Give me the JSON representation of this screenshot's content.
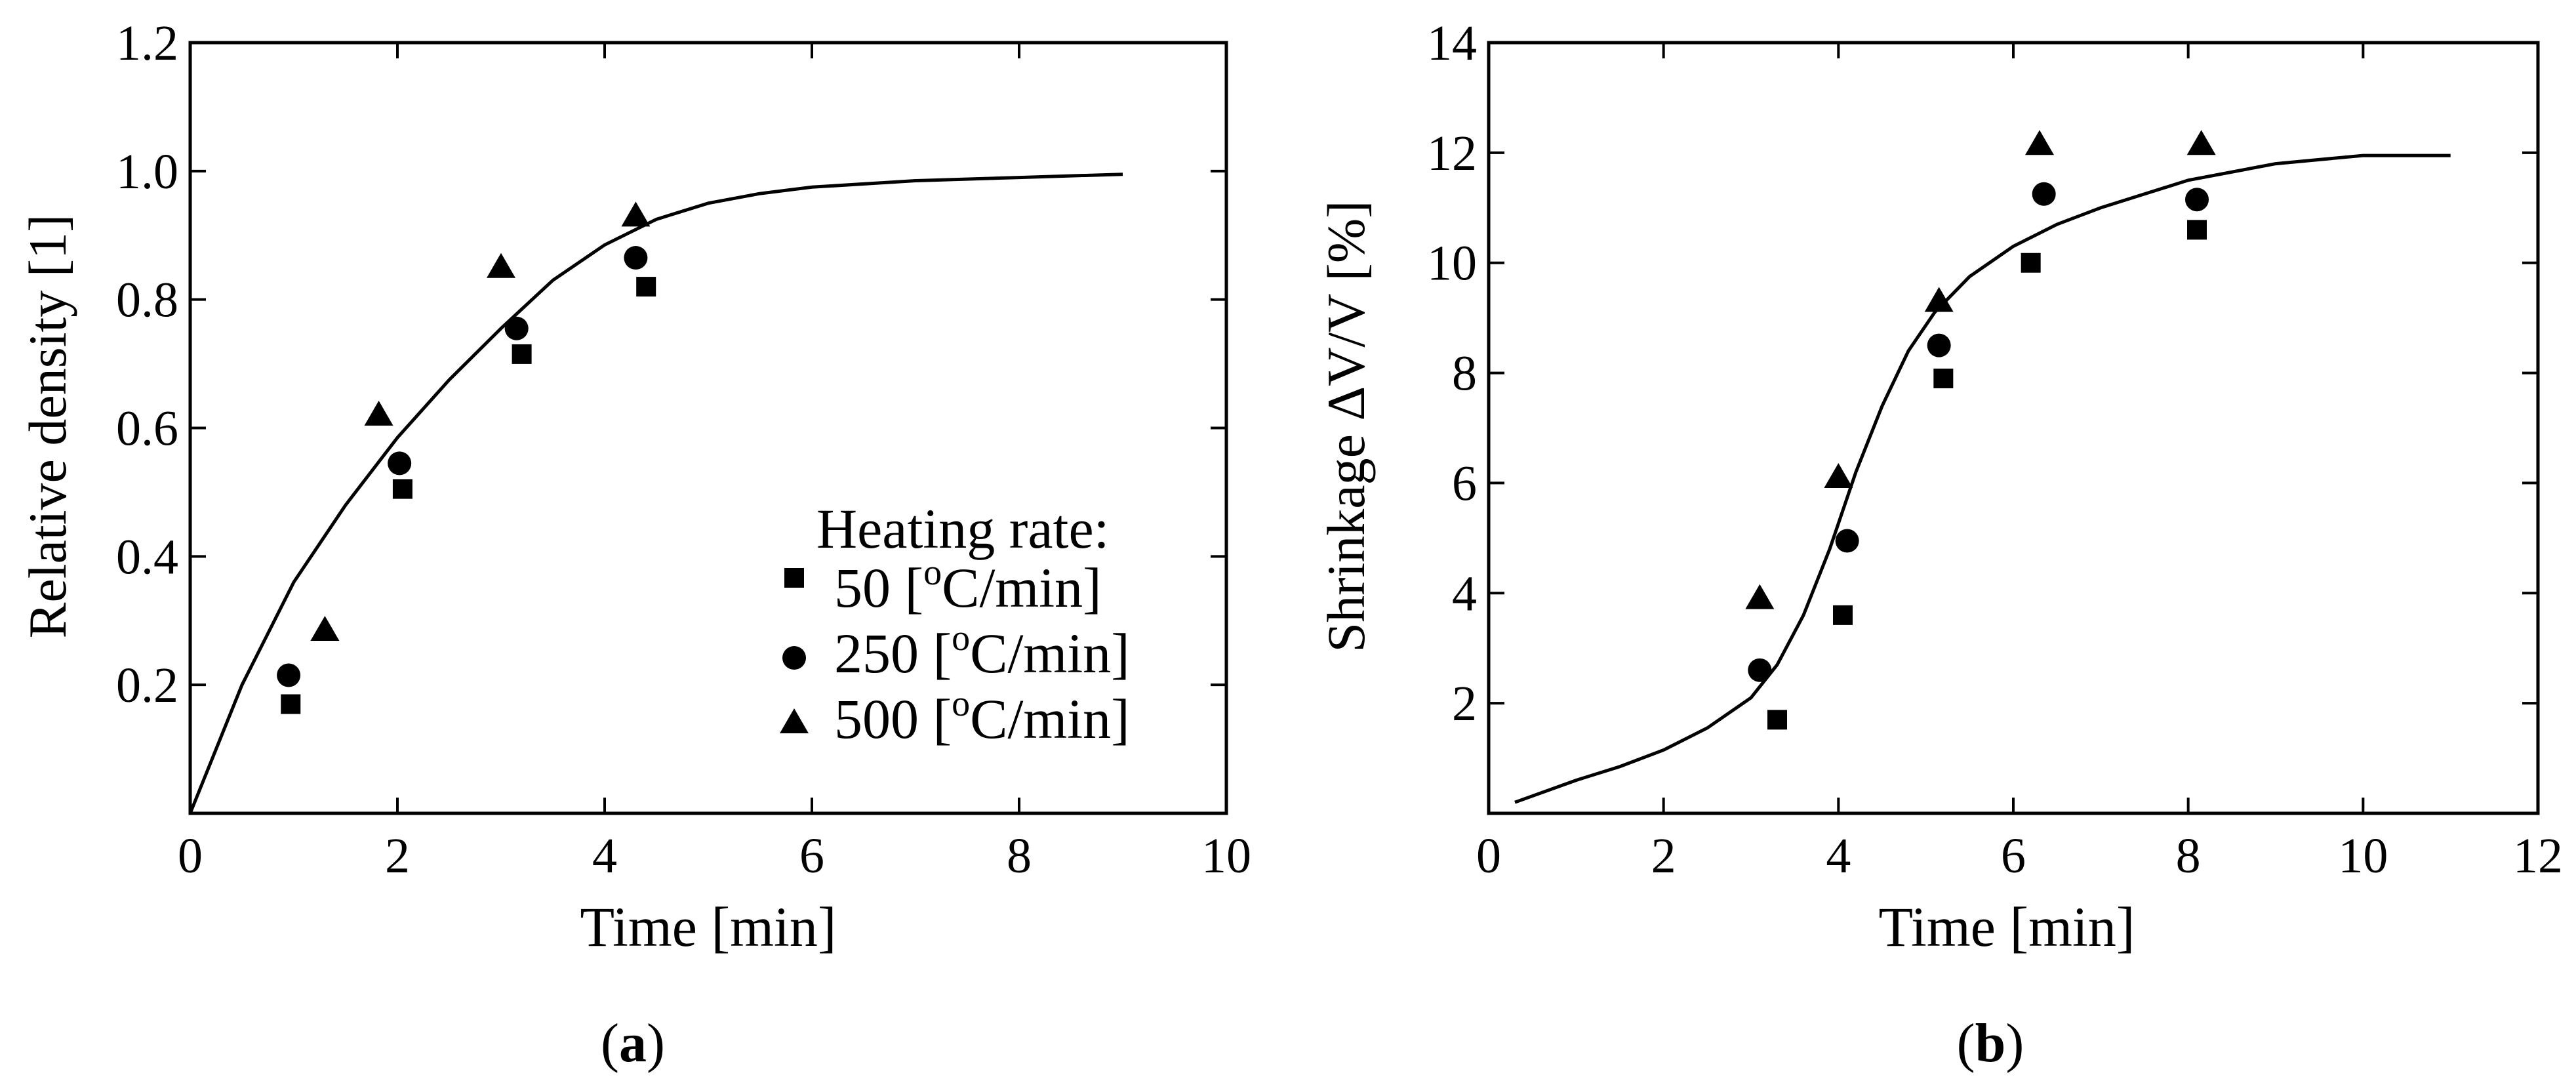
{
  "chart_data": [
    {
      "type": "scatter",
      "panel_label": "a",
      "xlabel": "Time [min]",
      "ylabel": "Relative density  [1]",
      "xlim": [
        0,
        10
      ],
      "ylim": [
        0,
        1.2
      ],
      "xticks": [
        0,
        2,
        4,
        6,
        8,
        10
      ],
      "xtick_labels": [
        "0",
        "2",
        "4",
        "6",
        "8",
        "10"
      ],
      "yticks": [
        0.2,
        0.4,
        0.6,
        0.8,
        1.0,
        1.2
      ],
      "ytick_labels": [
        "0.2",
        "0.4",
        "0.6",
        "0.8",
        "1.0",
        "1.2"
      ],
      "legend_title": "Heating rate:",
      "legend_position": "bottom-right",
      "series": [
        {
          "name": "50 [oC/min]",
          "label_value": "50 [",
          "label_sup": "o",
          "label_unit": "C/min]",
          "marker": "square",
          "x": [
            0.97,
            2.05,
            3.2,
            4.4
          ],
          "y": [
            0.17,
            0.505,
            0.715,
            0.82
          ]
        },
        {
          "name": "250 [oC/min]",
          "label_value": "250 [",
          "label_sup": "o",
          "label_unit": "C/min]",
          "marker": "circle",
          "x": [
            0.95,
            2.02,
            3.15,
            4.3
          ],
          "y": [
            0.215,
            0.545,
            0.755,
            0.865
          ]
        },
        {
          "name": "500 [oC/min]",
          "label_value": "500 [",
          "label_sup": "o",
          "label_unit": "C/min]",
          "marker": "triangle",
          "x": [
            1.3,
            1.82,
            3.0,
            4.3
          ],
          "y": [
            0.285,
            0.62,
            0.85,
            0.93
          ]
        }
      ],
      "fit_curve": {
        "x": [
          0,
          0.5,
          1,
          1.5,
          2,
          2.5,
          3,
          3.5,
          4,
          4.5,
          5,
          5.5,
          6,
          7,
          8,
          9
        ],
        "y": [
          0.0,
          0.2,
          0.36,
          0.48,
          0.585,
          0.675,
          0.755,
          0.83,
          0.885,
          0.925,
          0.95,
          0.965,
          0.975,
          0.985,
          0.99,
          0.995
        ]
      }
    },
    {
      "type": "scatter",
      "panel_label": "b",
      "xlabel": "Time [min]",
      "ylabel": "Shrinkage ΔV/V  [%]",
      "xlim": [
        0,
        12
      ],
      "ylim": [
        0,
        14
      ],
      "xticks": [
        0,
        2,
        4,
        6,
        8,
        10,
        12
      ],
      "xtick_labels": [
        "0",
        "2",
        "4",
        "6",
        "8",
        "10",
        "12"
      ],
      "yticks": [
        2,
        4,
        6,
        8,
        10,
        12,
        14
      ],
      "ytick_labels": [
        "2",
        "4",
        "6",
        "8",
        "10",
        "12",
        "14"
      ],
      "series": [
        {
          "name": "50 [oC/min]",
          "marker": "square",
          "x": [
            3.3,
            4.05,
            5.2,
            6.2,
            8.1
          ],
          "y": [
            1.7,
            3.6,
            7.9,
            10.0,
            10.6
          ]
        },
        {
          "name": "250 [oC/min]",
          "marker": "circle",
          "x": [
            3.1,
            4.1,
            5.15,
            6.35,
            8.1
          ],
          "y": [
            2.6,
            4.95,
            8.5,
            11.25,
            11.15
          ]
        },
        {
          "name": "500 [oC/min]",
          "marker": "triangle",
          "x": [
            3.1,
            4.0,
            5.15,
            6.3,
            8.15
          ],
          "y": [
            3.9,
            6.1,
            9.3,
            12.15,
            12.15
          ]
        }
      ],
      "fit_curve": {
        "x": [
          0.3,
          1,
          1.5,
          2,
          2.5,
          3,
          3.3,
          3.6,
          3.9,
          4.2,
          4.5,
          4.8,
          5.1,
          5.5,
          6,
          6.5,
          7,
          7.5,
          8,
          9,
          10,
          11
        ],
        "y": [
          0.2,
          0.6,
          0.85,
          1.15,
          1.55,
          2.1,
          2.7,
          3.6,
          4.8,
          6.2,
          7.4,
          8.4,
          9.1,
          9.75,
          10.3,
          10.7,
          11.0,
          11.25,
          11.5,
          11.8,
          11.95,
          11.95
        ]
      }
    }
  ]
}
